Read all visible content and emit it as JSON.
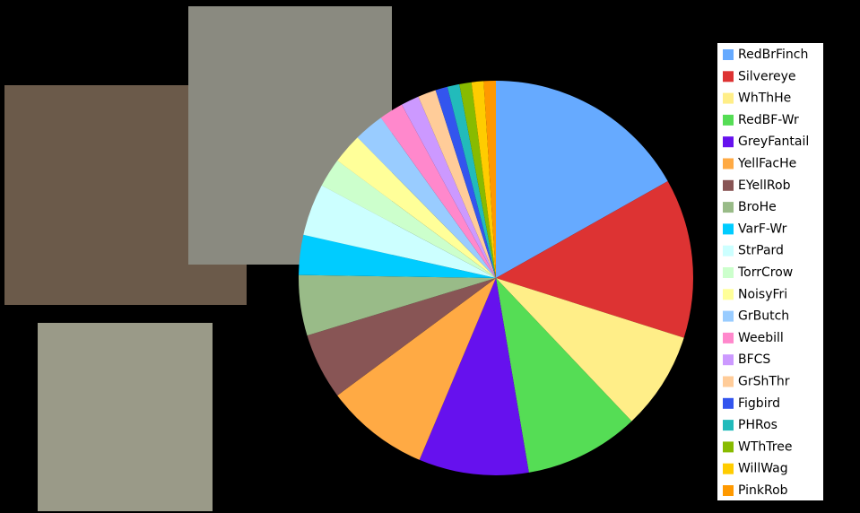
{
  "chart_data": {
    "type": "pie",
    "categories": [
      "RedBrFinch",
      "Silvereye",
      "WhThHe",
      "RedBF-Wr",
      "GreyFantail",
      "YellFacHe",
      "EYellRob",
      "BroHe",
      "VarF-Wr",
      "StrPard",
      "TorrCrow",
      "NoisyFri",
      "GrButch",
      "Weebill",
      "BFCS",
      "GrShThr",
      "Figbird",
      "PHRos",
      "WThTree",
      "WillWag",
      "PinkRob"
    ],
    "values": [
      17,
      13.2,
      8.1,
      9.5,
      9.1,
      8.6,
      5.5,
      5,
      3.3,
      4.3,
      2.4,
      2.5,
      2.5,
      2,
      1.5,
      1.5,
      1,
      1,
      1,
      1,
      1
    ],
    "colors": [
      "#66aaff",
      "#dd3333",
      "#ffee88",
      "#55dd55",
      "#6611ee",
      "#ffaa44",
      "#885555",
      "#99bb88",
      "#00ccff",
      "#ccffff",
      "#ccffcc",
      "#ffff99",
      "#99ccff",
      "#ff88cc",
      "#cc99ff",
      "#ffcc99",
      "#3355ee",
      "#22bbbb",
      "#88bb00",
      "#ffcc00",
      "#ff9900"
    ],
    "legend": "right"
  }
}
